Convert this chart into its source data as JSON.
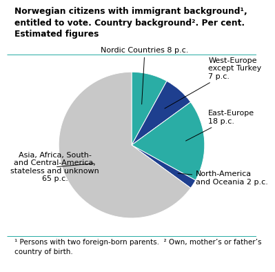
{
  "title_line1": "Norwegian citizens with immigrant background¹,",
  "title_line2": "entitled to vote. Country background². Per cent.",
  "title_line3": "Estimated figures",
  "footnote": "¹ Persons with two foreign-born parents.  ² Own, mother’s or father’s\ncountry of birth.",
  "slices": [
    {
      "label": "Nordic Countries 8 p.c.",
      "value": 8,
      "color": "#2aada5"
    },
    {
      "label": "West-Europe\nexcept Turkey\n7 p.c.",
      "value": 7,
      "color": "#1e3f8f"
    },
    {
      "label": "East-Europe\n18 p.c.",
      "value": 18,
      "color": "#2aada5"
    },
    {
      "label": "North-America\nand Oceania 2 p.c.",
      "value": 2,
      "color": "#1e3f8f"
    },
    {
      "label": "Asia, Africa, South-\nand Central-America,\nstateless and unknown\n65 p.c.",
      "value": 65,
      "color": "#c8c8c8"
    }
  ],
  "bg": "#ffffff",
  "teal_line": "#2aada5",
  "title_fontsize": 8.8,
  "label_fontsize": 8.0,
  "footnote_fontsize": 7.5
}
